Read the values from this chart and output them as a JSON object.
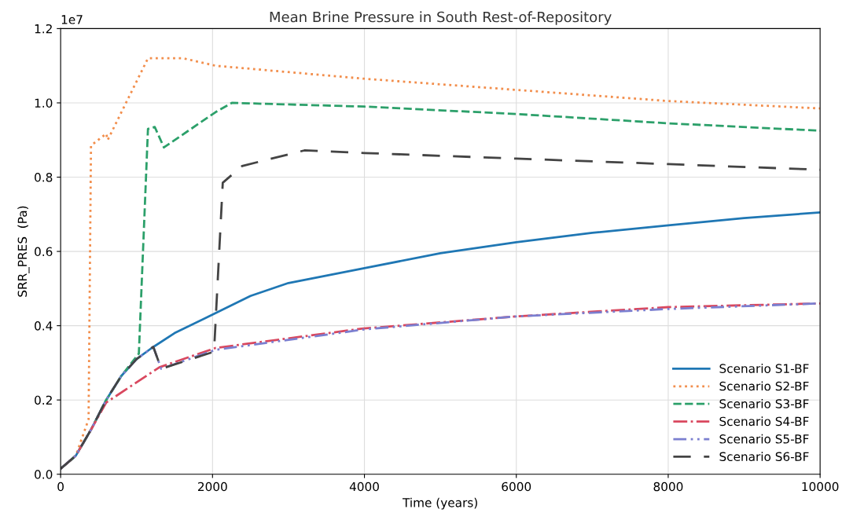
{
  "chart_data": {
    "type": "line",
    "title": "Mean Brine Pressure in South Rest-of-Repository",
    "xlabel": "Time (years)",
    "ylabel": "SRR_PRES  (Pa)",
    "annotations": [
      "1e7"
    ],
    "xlim": [
      0,
      10000
    ],
    "xticks": [
      0,
      2000,
      4000,
      6000,
      8000,
      10000
    ],
    "ylim": [
      0,
      1.2
    ],
    "yticks": [
      {
        "value": 0,
        "label": "0.0"
      },
      0.2,
      0.4,
      0.6,
      0.8,
      {
        "value": 1,
        "label": "1.0"
      },
      1.2
    ],
    "grid": true,
    "legend": "bottom right",
    "series": [
      {
        "name": "Scenario S1-BF",
        "color": "#1f77b4",
        "line_style": "solid",
        "x": [
          0,
          200,
          400,
          600,
          800,
          1000,
          1200,
          1500,
          2000,
          2500,
          3000,
          4000,
          5000,
          6000,
          7000,
          8000,
          9000,
          10000
        ],
        "values": [
          0.015,
          0.05,
          0.12,
          0.2,
          0.265,
          0.31,
          0.34,
          0.38,
          0.43,
          0.48,
          0.515,
          0.555,
          0.595,
          0.625,
          0.65,
          0.67,
          0.69,
          0.705
        ]
      },
      {
        "name": "Scenario S2-BF",
        "color": "#f28e4c",
        "line_style": "dotted",
        "x": [
          0,
          200,
          368,
          400,
          600,
          620,
          1150,
          1615,
          2040,
          4000,
          6000,
          8000,
          10000
        ],
        "values": [
          0.015,
          0.05,
          0.148,
          0.885,
          0.917,
          0.9,
          1.12,
          1.12,
          1.1,
          1.065,
          1.035,
          1.005,
          0.985
        ]
      },
      {
        "name": "Scenario S3-BF",
        "color": "#2ca06a",
        "line_style": "dashed",
        "x": [
          0,
          200,
          400,
          600,
          800,
          1030,
          1150,
          1240,
          1360,
          2040,
          2255,
          4000,
          6000,
          8000,
          10000
        ],
        "values": [
          0.015,
          0.05,
          0.12,
          0.2,
          0.265,
          0.325,
          0.93,
          0.935,
          0.88,
          0.975,
          1.0,
          0.99,
          0.97,
          0.945,
          0.925
        ]
      },
      {
        "name": "Scenario S4-BF",
        "color": "#d9485f",
        "line_style": "dashdot",
        "x": [
          0,
          200,
          400,
          600,
          1300,
          2040,
          3965,
          6000,
          8000,
          10000
        ],
        "values": [
          0.015,
          0.05,
          0.12,
          0.193,
          0.288,
          0.34,
          0.392,
          0.425,
          0.45,
          0.46
        ]
      },
      {
        "name": "Scenario S5-BF",
        "color": "#7b7fd0",
        "line_style": "dashdotdot",
        "x": [
          0,
          200,
          400,
          600,
          800,
          1000,
          1220,
          1325,
          2040,
          4000,
          6000,
          8000,
          10000
        ],
        "values": [
          0.015,
          0.05,
          0.12,
          0.2,
          0.265,
          0.31,
          0.343,
          0.284,
          0.335,
          0.39,
          0.425,
          0.445,
          0.46
        ]
      },
      {
        "name": "Scenario S6-BF",
        "color": "#444444",
        "line_style": "longdash",
        "x": [
          0,
          200,
          400,
          600,
          800,
          1000,
          1220,
          1325,
          2020,
          2135,
          2390,
          3210,
          4000,
          6000,
          8000,
          10000
        ],
        "values": [
          0.015,
          0.05,
          0.12,
          0.2,
          0.265,
          0.31,
          0.343,
          0.284,
          0.33,
          0.785,
          0.83,
          0.872,
          0.865,
          0.85,
          0.835,
          0.82
        ]
      }
    ]
  }
}
